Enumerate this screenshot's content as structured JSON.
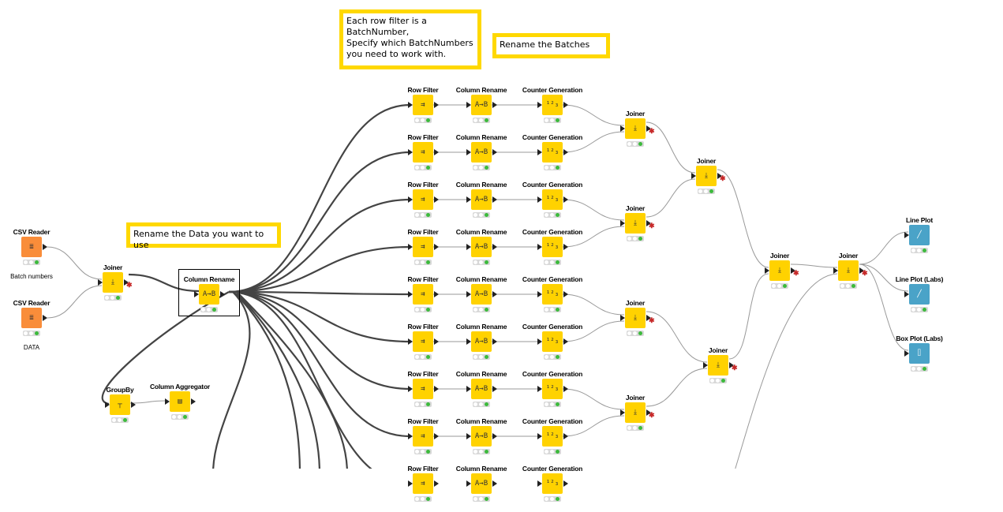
{
  "annotations": [
    {
      "id": "batch-filter",
      "text": "Each row filter is a\nBatchNumber,\nSpecify which BatchNumbers\nyou need to work with."
    },
    {
      "id": "rename-batches",
      "text": "Rename the Batches"
    },
    {
      "id": "rename-data",
      "text": "Rename the Data you want to use"
    }
  ],
  "nodes": {
    "csv1": {
      "title": "CSV Reader",
      "sub": "Batch numbers"
    },
    "csv2": {
      "title": "CSV Reader",
      "sub": "DATA"
    },
    "joiner_main": {
      "title": "Joiner"
    },
    "col_rename_main": {
      "title": "Column Rename"
    },
    "groupby": {
      "title": "GroupBy"
    },
    "col_agg": {
      "title": "Column Aggregator"
    },
    "row_filter": {
      "title": "Row Filter"
    },
    "col_rename": {
      "title": "Column Rename"
    },
    "counter": {
      "title": "Counter Generation"
    },
    "joiner": {
      "title": "Joiner"
    },
    "line_plot": {
      "title": "Line Plot"
    },
    "line_plot_labs": {
      "title": "Line Plot (Labs)"
    },
    "box_plot_labs": {
      "title": "Box Plot (Labs)"
    }
  },
  "colors": {
    "manipulator": "#ffd200",
    "source": "#f98d3a",
    "visualizer": "#4aa3c8",
    "annotation_border": "#ffd800",
    "status_ok": "#3cba3c"
  },
  "icons": {
    "row_filter": "row-filter-icon",
    "column_rename": "column-rename-icon",
    "counter": "counter-icon",
    "joiner": "joiner-icon",
    "csv": "csv-reader-icon",
    "groupby": "groupby-icon",
    "aggregator": "aggregator-icon",
    "line_plot": "line-plot-icon",
    "box_plot": "box-plot-icon"
  }
}
